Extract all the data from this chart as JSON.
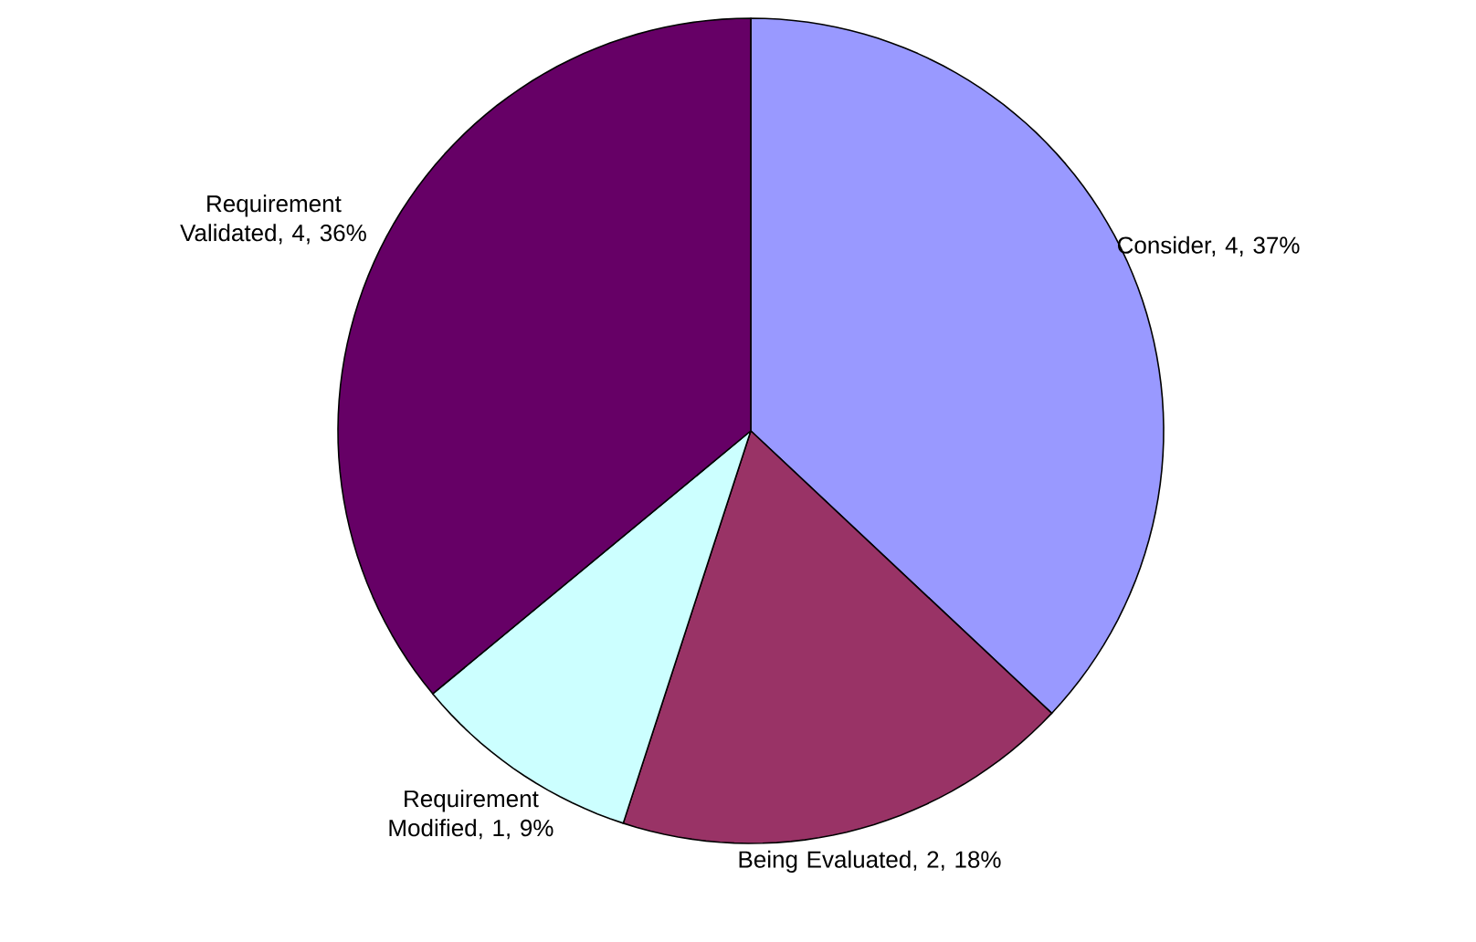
{
  "chart_data": {
    "type": "pie",
    "categories": [
      "Consider, 4, 37%",
      "Being Evaluated, 2, 18%",
      "Requirement Modified, 1, 9%",
      "Requirement Validated, 4, 36%"
    ],
    "values": [
      37,
      18,
      9,
      36
    ],
    "colors": [
      "#9999ff",
      "#993366",
      "#ccffff",
      "#660066"
    ]
  }
}
